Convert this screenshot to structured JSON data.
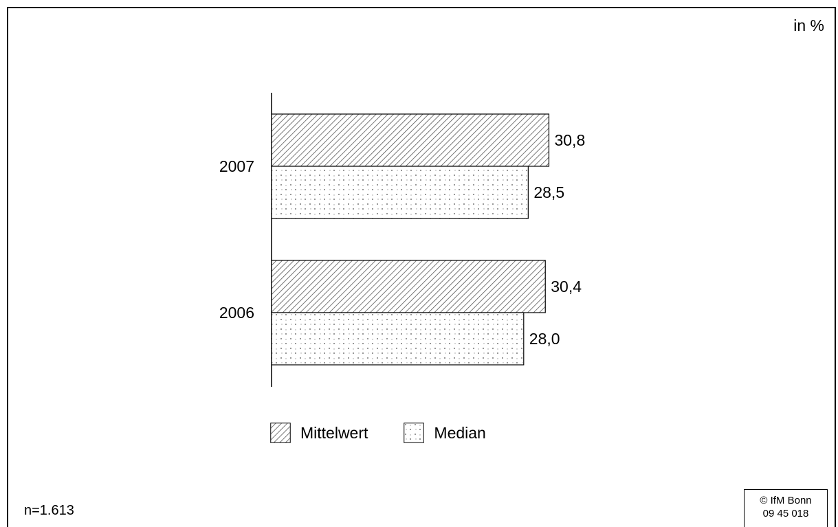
{
  "unit_label": "in %",
  "footer": {
    "n": "n=1.613",
    "credit_line1": "© IfM Bonn",
    "credit_line2": "09 45 018"
  },
  "legend": [
    {
      "label": "Mittelwert",
      "pattern": "hatch"
    },
    {
      "label": "Median",
      "pattern": "dots"
    }
  ],
  "chart_data": {
    "type": "bar",
    "orientation": "horizontal",
    "categories": [
      "2007",
      "2006"
    ],
    "series": [
      {
        "name": "Mittelwert",
        "values": [
          30.8,
          30.4
        ],
        "labels": [
          "30,8",
          "30,4"
        ]
      },
      {
        "name": "Median",
        "values": [
          28.5,
          28.0
        ],
        "labels": [
          "28,5",
          "28,0"
        ]
      }
    ],
    "title": "",
    "xlabel": "",
    "ylabel": "",
    "xlim": [
      0,
      50
    ],
    "grid": false,
    "legend_position": "bottom",
    "colors": {
      "stroke": "#000000",
      "fill": "#ffffff",
      "pattern": "#555555"
    }
  }
}
